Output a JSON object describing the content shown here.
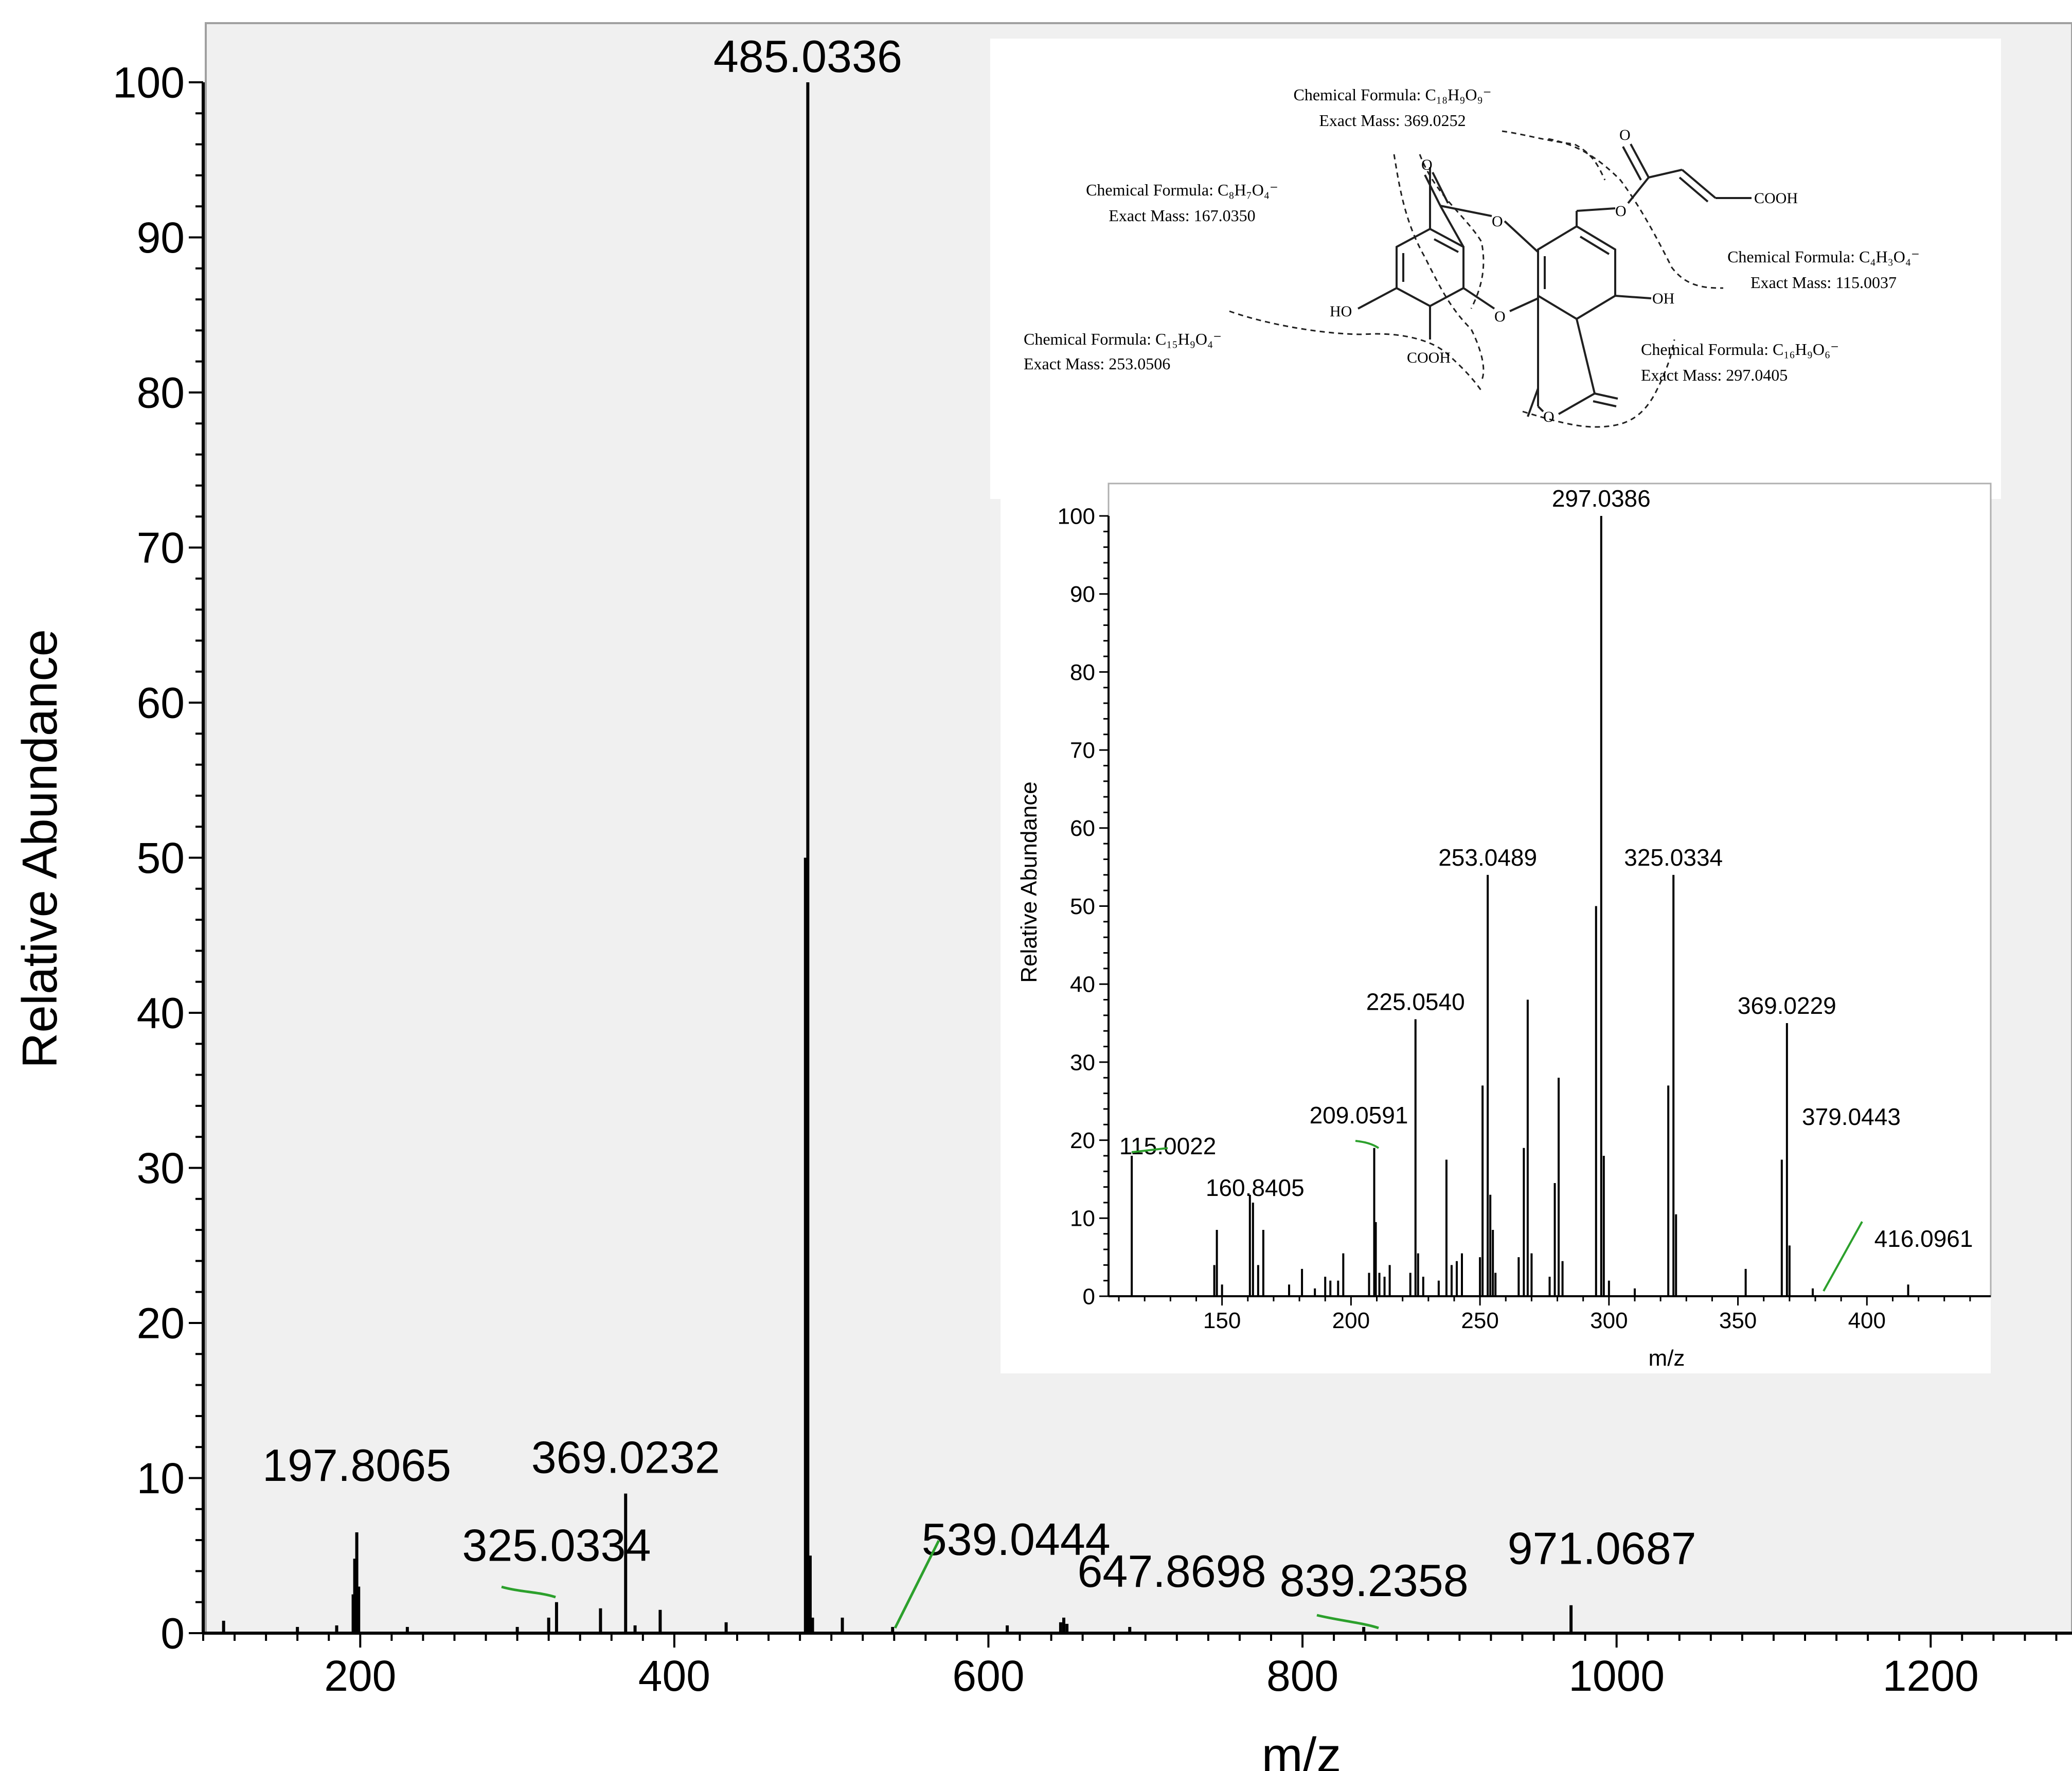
{
  "chart_data": [
    {
      "type": "bar",
      "name": "main-spectrum",
      "xlabel": "m/z",
      "ylabel": "Relative Abundance",
      "xlim": [
        100,
        1290
      ],
      "ylim": [
        0,
        100
      ],
      "xticks": [
        "200",
        "400",
        "600",
        "800",
        "1000",
        "1200"
      ],
      "yticks": [
        "0",
        "10",
        "20",
        "30",
        "40",
        "50",
        "60",
        "70",
        "80",
        "90",
        "100"
      ],
      "peaks": [
        {
          "x": 113,
          "y": 0.8
        },
        {
          "x": 160,
          "y": 0.4
        },
        {
          "x": 185,
          "y": 0.5
        },
        {
          "x": 195.5,
          "y": 2.5
        },
        {
          "x": 196.5,
          "y": 4.8
        },
        {
          "x": 197.8,
          "y": 6.5
        },
        {
          "x": 199,
          "y": 3.0
        },
        {
          "x": 230,
          "y": 0.4
        },
        {
          "x": 300,
          "y": 0.4
        },
        {
          "x": 320,
          "y": 1.0
        },
        {
          "x": 325,
          "y": 2.0
        },
        {
          "x": 353,
          "y": 1.6
        },
        {
          "x": 369,
          "y": 9.0
        },
        {
          "x": 375,
          "y": 0.5
        },
        {
          "x": 391,
          "y": 1.5
        },
        {
          "x": 433,
          "y": 0.7
        },
        {
          "x": 483.5,
          "y": 50.0
        },
        {
          "x": 485,
          "y": 100.0
        },
        {
          "x": 486.5,
          "y": 5.0
        },
        {
          "x": 488,
          "y": 1.0
        },
        {
          "x": 507,
          "y": 1.0
        },
        {
          "x": 539,
          "y": 0.4
        },
        {
          "x": 612,
          "y": 0.5
        },
        {
          "x": 646,
          "y": 0.7
        },
        {
          "x": 648,
          "y": 1.0
        },
        {
          "x": 650,
          "y": 0.6
        },
        {
          "x": 690,
          "y": 0.4
        },
        {
          "x": 839,
          "y": 0.4
        },
        {
          "x": 971,
          "y": 1.8
        }
      ],
      "labels": [
        {
          "text": "485.0336",
          "x": 485,
          "y": 100
        },
        {
          "text": "197.8065",
          "x": 197.8,
          "y": 6.5
        },
        {
          "text": "369.0232",
          "x": 369,
          "y": 9.0
        },
        {
          "text": "325.0334",
          "x": 325,
          "y": 2.0
        },
        {
          "text": "539.0444",
          "x": 539,
          "y": 0.4
        },
        {
          "text": "647.8698",
          "x": 648,
          "y": 1.0
        },
        {
          "text": "839.2358",
          "x": 839,
          "y": 0.4
        },
        {
          "text": "971.0687",
          "x": 971,
          "y": 1.8
        }
      ]
    },
    {
      "type": "bar",
      "name": "inset-ms2-spectrum",
      "xlabel": "m/z",
      "ylabel": "Relative Abundance",
      "xlim": [
        106,
        448
      ],
      "ylim": [
        0,
        100
      ],
      "xticks": [
        "150",
        "200",
        "250",
        "300",
        "350",
        "400"
      ],
      "yticks": [
        "0",
        "10",
        "20",
        "30",
        "40",
        "50",
        "60",
        "70",
        "80",
        "90",
        "100"
      ],
      "peaks": [
        {
          "x": 115,
          "y": 18
        },
        {
          "x": 147,
          "y": 4
        },
        {
          "x": 148,
          "y": 8.5
        },
        {
          "x": 150,
          "y": 1.5
        },
        {
          "x": 160.8,
          "y": 13
        },
        {
          "x": 162,
          "y": 12
        },
        {
          "x": 164,
          "y": 4
        },
        {
          "x": 166,
          "y": 8.5
        },
        {
          "x": 176,
          "y": 1.5
        },
        {
          "x": 181,
          "y": 3.5
        },
        {
          "x": 186,
          "y": 1
        },
        {
          "x": 190,
          "y": 2.5
        },
        {
          "x": 192,
          "y": 2
        },
        {
          "x": 195,
          "y": 2
        },
        {
          "x": 197,
          "y": 5.5
        },
        {
          "x": 207,
          "y": 3
        },
        {
          "x": 209,
          "y": 19
        },
        {
          "x": 209.6,
          "y": 9.5
        },
        {
          "x": 211,
          "y": 3
        },
        {
          "x": 213,
          "y": 2.5
        },
        {
          "x": 215,
          "y": 4
        },
        {
          "x": 223,
          "y": 3
        },
        {
          "x": 225,
          "y": 35.5
        },
        {
          "x": 226,
          "y": 5.5
        },
        {
          "x": 228,
          "y": 2.5
        },
        {
          "x": 234,
          "y": 2
        },
        {
          "x": 237,
          "y": 17.5
        },
        {
          "x": 239,
          "y": 4
        },
        {
          "x": 241,
          "y": 4.5
        },
        {
          "x": 243,
          "y": 5.5
        },
        {
          "x": 250,
          "y": 5
        },
        {
          "x": 251,
          "y": 27
        },
        {
          "x": 253,
          "y": 54
        },
        {
          "x": 254,
          "y": 13
        },
        {
          "x": 255,
          "y": 8.5
        },
        {
          "x": 256,
          "y": 3
        },
        {
          "x": 265,
          "y": 5
        },
        {
          "x": 267,
          "y": 19
        },
        {
          "x": 268.5,
          "y": 38
        },
        {
          "x": 270,
          "y": 5.5
        },
        {
          "x": 277,
          "y": 2.5
        },
        {
          "x": 279,
          "y": 14.5
        },
        {
          "x": 280.5,
          "y": 28
        },
        {
          "x": 282,
          "y": 4.5
        },
        {
          "x": 295,
          "y": 50
        },
        {
          "x": 297,
          "y": 100
        },
        {
          "x": 298,
          "y": 18
        },
        {
          "x": 300,
          "y": 2
        },
        {
          "x": 310,
          "y": 1
        },
        {
          "x": 323,
          "y": 27
        },
        {
          "x": 325,
          "y": 54
        },
        {
          "x": 326,
          "y": 10.5
        },
        {
          "x": 353,
          "y": 3.5
        },
        {
          "x": 367,
          "y": 17.5
        },
        {
          "x": 369,
          "y": 35
        },
        {
          "x": 370,
          "y": 6.5
        },
        {
          "x": 379,
          "y": 1
        },
        {
          "x": 416,
          "y": 1.5
        }
      ],
      "labels": [
        {
          "text": "297.0386",
          "x": 297,
          "y": 100
        },
        {
          "text": "253.0489",
          "x": 253,
          "y": 54
        },
        {
          "text": "325.0334",
          "x": 325,
          "y": 54
        },
        {
          "text": "225.0540",
          "x": 225,
          "y": 35.5
        },
        {
          "text": "369.0229",
          "x": 369,
          "y": 35
        },
        {
          "text": "115.0022",
          "x": 115,
          "y": 18
        },
        {
          "text": "209.0591",
          "x": 209,
          "y": 19
        },
        {
          "text": "160.8405",
          "x": 160.8,
          "y": 13
        },
        {
          "text": "379.0443",
          "x": 379,
          "y": 1
        },
        {
          "text": "416.0961",
          "x": 416,
          "y": 1.5
        }
      ]
    }
  ],
  "structure": {
    "annotations": [
      {
        "formula": "Chemical Formula: C₁₈H₉O₉⁻",
        "mass": "Exact Mass: 369.0252"
      },
      {
        "formula": "Chemical Formula: C₈H₇O₄⁻",
        "mass": "Exact Mass: 167.0350"
      },
      {
        "formula": "Chemical Formula: C₄H₃O₄⁻",
        "mass": "Exact Mass: 115.0037"
      },
      {
        "formula": "Chemical Formula: C₁₅H₉O₄⁻",
        "mass": "Exact Mass: 253.0506"
      },
      {
        "formula": "Chemical Formula: C₁₆H₉O₆⁻",
        "mass": "Exact Mass: 297.0405"
      }
    ],
    "atoms": {
      "o1": "O",
      "o2": "O",
      "o3": "O",
      "o4": "O",
      "o5": "O",
      "o6": "O",
      "cooh1": "COOH",
      "cooh2": "COOH",
      "oh": "OH",
      "ho": "HO"
    }
  }
}
